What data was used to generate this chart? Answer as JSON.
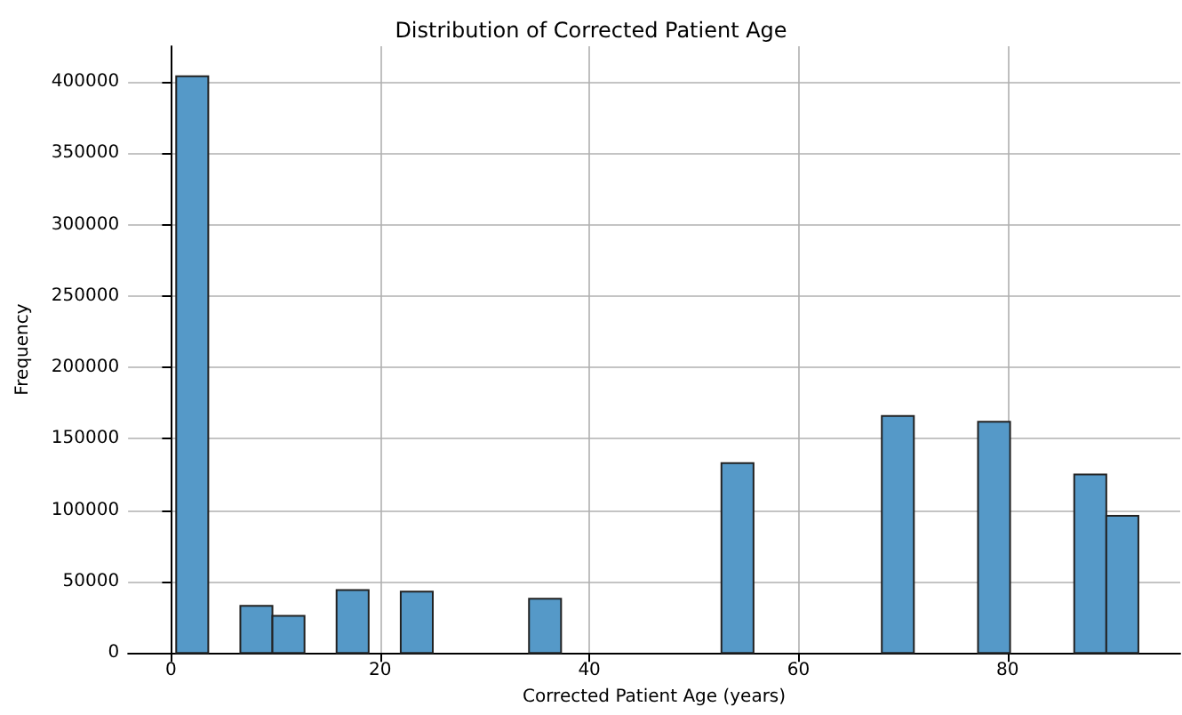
{
  "chart_data": {
    "type": "histogram",
    "title": "Distribution of Corrected Patient Age",
    "xlabel": "Corrected Patient Age (years)",
    "ylabel": "Frequency",
    "bins": [
      0.5,
      3.567,
      6.633,
      9.7,
      12.767,
      15.833,
      18.9,
      21.967,
      25.033,
      28.1,
      31.167,
      34.233,
      37.3,
      40.367,
      43.433,
      46.5,
      49.567,
      52.633,
      55.7,
      58.767,
      61.833,
      64.9,
      67.967,
      71.033,
      74.1,
      77.167,
      80.233,
      83.3,
      86.367,
      89.433,
      92.5
    ],
    "values": [
      404000,
      0,
      33000,
      26000,
      0,
      44000,
      0,
      43000,
      0,
      0,
      0,
      38000,
      0,
      0,
      0,
      0,
      0,
      133000,
      0,
      0,
      0,
      0,
      166000,
      0,
      0,
      162000,
      0,
      0,
      125000,
      96000
    ],
    "color": "#5599c8",
    "xlim": [
      -4.1,
      96.5
    ],
    "xticks": [
      0,
      20,
      40,
      60,
      80
    ],
    "ylim": [
      0,
      425000
    ],
    "yticks": [
      0,
      50000,
      100000,
      150000,
      200000,
      250000,
      300000,
      350000,
      400000
    ],
    "grid": true
  }
}
